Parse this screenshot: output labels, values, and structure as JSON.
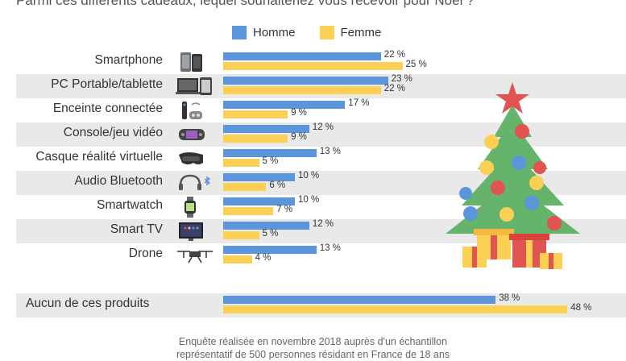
{
  "subtitle": "Parmi ces différents cadeaux, lequel souhaiteriez vous recevoir pour Noël ?",
  "footnote": "Enquête réalisée en novembre 2018 auprès d'un échantillon",
  "footnote2": "représentatif de 500 personnes résidant en France de 18 ans",
  "colors": {
    "homme": "#5b96dd",
    "femme": "#fccf55",
    "band": "#e9e9e9"
  },
  "chart_data": {
    "type": "bar",
    "orientation": "horizontal",
    "value_suffix": " %",
    "legend_position": "top",
    "series": [
      {
        "name": "Homme",
        "values": [
          22,
          23,
          17,
          12,
          13,
          10,
          10,
          12,
          13,
          38
        ]
      },
      {
        "name": "Femme",
        "values": [
          25,
          22,
          9,
          9,
          5,
          6,
          7,
          5,
          4,
          48
        ]
      }
    ],
    "categories": [
      "Smartphone",
      "PC Portable/tablette",
      "Enceinte connectée",
      "Console/jeu vidéo",
      "Casque réalité virtuelle",
      "Audio Bluetooth",
      "Smartwatch",
      "Smart TV",
      "Drone",
      "Aucun de ces produits"
    ],
    "icons": [
      "smartphone-icon",
      "laptop-tablet-icon",
      "smart-speaker-icon",
      "game-console-icon",
      "vr-headset-icon",
      "bluetooth-headphones-icon",
      "smartwatch-icon",
      "smart-tv-icon",
      "drone-icon",
      ""
    ],
    "xlim": [
      0,
      50
    ]
  }
}
